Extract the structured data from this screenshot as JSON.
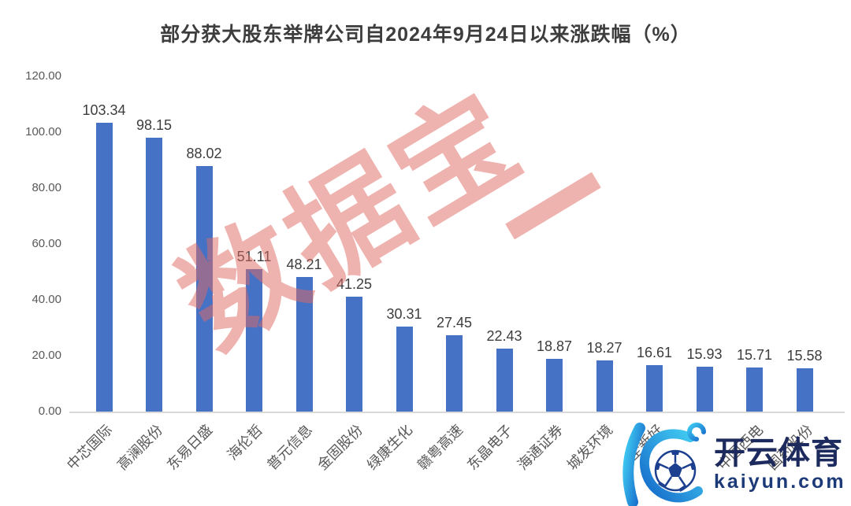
{
  "chart_data": {
    "type": "bar",
    "title": "部分获大股东举牌公司自2024年9月24日以来涨跌幅（%）",
    "categories": [
      "中芯国际",
      "高澜股份",
      "东易日盛",
      "海伦哲",
      "普元信息",
      "金固股份",
      "绿康生化",
      "赣粤高速",
      "东晶电子",
      "海通证券",
      "城发环境",
      "全新好",
      "",
      "中国西电",
      "国药股份"
    ],
    "values": [
      103.34,
      98.15,
      88.02,
      51.11,
      48.21,
      41.25,
      30.31,
      27.45,
      22.43,
      18.87,
      18.27,
      16.61,
      15.93,
      15.71,
      15.58
    ],
    "value_labels": [
      "103.34",
      "98.15",
      "88.02",
      "51.11",
      "48.21",
      "41.25",
      "30.31",
      "27.45",
      "22.43",
      "18.87",
      "18.27",
      "16.61",
      "15.93",
      "15.71",
      "15.58"
    ],
    "yticks": [
      "0.00",
      "20.00",
      "40.00",
      "60.00",
      "80.00",
      "100.00",
      "120.00"
    ],
    "ylim": [
      0,
      120
    ],
    "grid": false,
    "xlabel": "",
    "ylabel": "",
    "bar_color": "#4672c6",
    "label_rotation_deg": 45
  },
  "watermark": {
    "text": "数据宝",
    "color": "rgba(223,103,95,0.5)"
  },
  "logo": {
    "monogram": "K",
    "name_cn": "开云体育",
    "domain": "kaiyun.com",
    "accent_light": "#3fc9f2",
    "accent_dark": "#1467c8",
    "text_color": "#1d2a5e"
  }
}
